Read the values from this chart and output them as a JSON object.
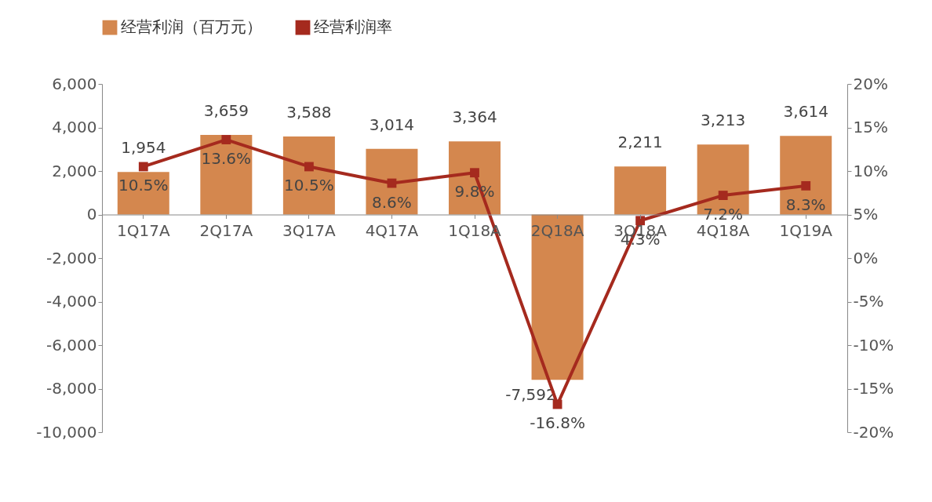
{
  "chart_data": {
    "type": "bar",
    "categories": [
      "1Q17A",
      "2Q17A",
      "3Q17A",
      "4Q17A",
      "1Q18A",
      "2Q18A",
      "3Q18A",
      "4Q18A",
      "1Q19A"
    ],
    "series": [
      {
        "name": "经营利润（百万元）",
        "color": "#d4874e",
        "values": [
          1954,
          3659,
          3588,
          3014,
          3364,
          -7592,
          2211,
          3213,
          3614
        ],
        "value_labels": [
          "1,954",
          "3,659",
          "3,588",
          "3,014",
          "3,364",
          "-7,592",
          "2,211",
          "3,213",
          "3,614"
        ]
      },
      {
        "name": "经营利润率",
        "type": "line",
        "axis": "y2",
        "color": "#a52a1e",
        "marker": "square",
        "values": [
          10.5,
          13.6,
          10.5,
          8.6,
          9.8,
          -16.8,
          4.3,
          7.2,
          8.3
        ],
        "value_labels": [
          "10.5%",
          "13.6%",
          "10.5%",
          "8.6%",
          "9.8%",
          "-16.8%",
          "4.3%",
          "7.2%",
          "8.3%"
        ]
      }
    ],
    "ylim": [
      -10000,
      6000
    ],
    "yticks": [
      {
        "value": -10000,
        "label": "-10,000"
      },
      {
        "value": -8000,
        "label": "-8,000"
      },
      {
        "value": -6000,
        "label": "-6,000"
      },
      {
        "value": -4000,
        "label": "-4,000"
      },
      {
        "value": -2000,
        "label": "-2,000"
      },
      0,
      {
        "value": 2000,
        "label": "2,000"
      },
      {
        "value": 4000,
        "label": "4,000"
      },
      {
        "value": 6000,
        "label": "6,000"
      }
    ],
    "y2lim": [
      -20,
      20
    ],
    "y2ticks": [
      {
        "value": -20,
        "label": "-20%"
      },
      {
        "value": -15,
        "label": "-15%"
      },
      {
        "value": -10,
        "label": "-10%"
      },
      {
        "value": -5,
        "label": "-5%"
      },
      {
        "value": 0,
        "label": "0%"
      },
      {
        "value": 5,
        "label": "5%"
      },
      {
        "value": 10,
        "label": "10%"
      },
      {
        "value": 15,
        "label": "15%"
      },
      {
        "value": 20,
        "label": "20%"
      }
    ],
    "legend": "top",
    "grid": false
  }
}
